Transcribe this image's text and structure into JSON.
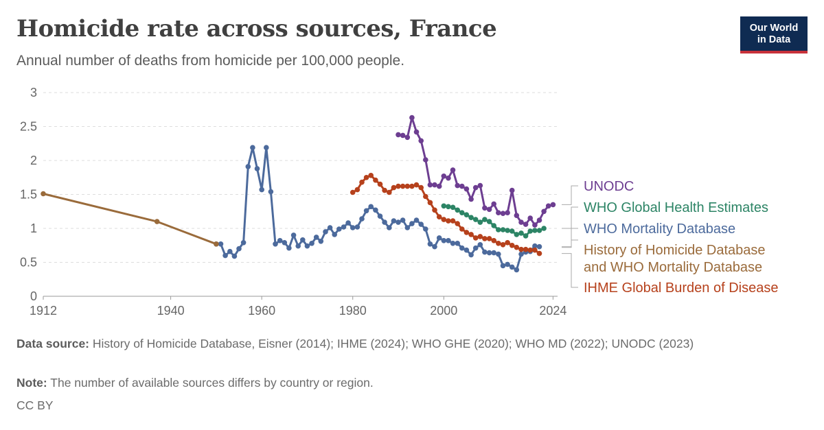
{
  "header": {
    "title": "Homicide rate across sources, France",
    "subtitle": "Annual number of deaths from homicide per 100,000 people.",
    "logo_line1": "Our World",
    "logo_line2": "in Data"
  },
  "colors": {
    "accent_navy": "#0f2b52",
    "accent_red": "#c8323b"
  },
  "chart_data": {
    "type": "line",
    "title": "Homicide rate across sources, France",
    "subtitle": "Annual number of deaths from homicide per 100,000 people.",
    "xlim": [
      1912,
      2025
    ],
    "ylim": [
      0,
      3
    ],
    "x_ticks": [
      1912,
      1940,
      1960,
      1980,
      2000,
      2024
    ],
    "y_ticks": [
      0,
      0.5,
      1,
      1.5,
      2,
      2.5,
      3
    ],
    "y_tick_labels": [
      "0",
      "0.5",
      "1",
      "1.5",
      "2",
      "2.5",
      "3"
    ],
    "grid": "horizontal dashed",
    "legend": "right, labels at line ends",
    "series": [
      {
        "name": "UNODC",
        "color": "#6d3e91",
        "points": [
          [
            1990,
            2.38
          ],
          [
            1991,
            2.37
          ],
          [
            1992,
            2.34
          ],
          [
            1993,
            2.63
          ],
          [
            1994,
            2.42
          ],
          [
            1995,
            2.29
          ],
          [
            1996,
            2.01
          ],
          [
            1997,
            1.64
          ],
          [
            1998,
            1.64
          ],
          [
            1999,
            1.62
          ],
          [
            2000,
            1.77
          ],
          [
            2001,
            1.74
          ],
          [
            2002,
            1.86
          ],
          [
            2003,
            1.63
          ],
          [
            2004,
            1.62
          ],
          [
            2005,
            1.58
          ],
          [
            2006,
            1.43
          ],
          [
            2007,
            1.6
          ],
          [
            2008,
            1.63
          ],
          [
            2009,
            1.3
          ],
          [
            2010,
            1.28
          ],
          [
            2011,
            1.36
          ],
          [
            2012,
            1.23
          ],
          [
            2013,
            1.22
          ],
          [
            2014,
            1.23
          ],
          [
            2015,
            1.56
          ],
          [
            2016,
            1.19
          ],
          [
            2017,
            1.09
          ],
          [
            2018,
            1.06
          ],
          [
            2019,
            1.15
          ],
          [
            2020,
            1.05
          ],
          [
            2021,
            1.12
          ],
          [
            2022,
            1.25
          ],
          [
            2023,
            1.33
          ],
          [
            2024,
            1.35
          ]
        ]
      },
      {
        "name": "WHO Global Health Estimates",
        "color": "#2c8465",
        "points": [
          [
            2000,
            1.33
          ],
          [
            2001,
            1.32
          ],
          [
            2002,
            1.31
          ],
          [
            2003,
            1.27
          ],
          [
            2004,
            1.23
          ],
          [
            2005,
            1.2
          ],
          [
            2006,
            1.16
          ],
          [
            2007,
            1.13
          ],
          [
            2008,
            1.09
          ],
          [
            2009,
            1.13
          ],
          [
            2010,
            1.1
          ],
          [
            2011,
            1.04
          ],
          [
            2012,
            0.98
          ],
          [
            2013,
            0.98
          ],
          [
            2014,
            0.97
          ],
          [
            2015,
            0.96
          ],
          [
            2016,
            0.91
          ],
          [
            2017,
            0.93
          ],
          [
            2018,
            0.89
          ],
          [
            2019,
            0.96
          ],
          [
            2020,
            0.97
          ],
          [
            2021,
            0.97
          ],
          [
            2022,
            1.0
          ]
        ]
      },
      {
        "name": "WHO Mortality Database",
        "color": "#4c6a9c",
        "points": [
          [
            1950,
            0.77
          ],
          [
            1951,
            0.77
          ],
          [
            1952,
            0.6
          ],
          [
            1953,
            0.66
          ],
          [
            1954,
            0.59
          ],
          [
            1955,
            0.7
          ],
          [
            1956,
            0.79
          ],
          [
            1957,
            1.91
          ],
          [
            1958,
            2.19
          ],
          [
            1959,
            1.88
          ],
          [
            1960,
            1.57
          ],
          [
            1961,
            2.19
          ],
          [
            1962,
            1.54
          ],
          [
            1963,
            0.77
          ],
          [
            1964,
            0.82
          ],
          [
            1965,
            0.79
          ],
          [
            1966,
            0.71
          ],
          [
            1967,
            0.9
          ],
          [
            1968,
            0.74
          ],
          [
            1969,
            0.83
          ],
          [
            1970,
            0.74
          ],
          [
            1971,
            0.78
          ],
          [
            1972,
            0.87
          ],
          [
            1973,
            0.81
          ],
          [
            1974,
            0.95
          ],
          [
            1975,
            1.01
          ],
          [
            1976,
            0.91
          ],
          [
            1977,
            0.99
          ],
          [
            1978,
            1.02
          ],
          [
            1979,
            1.08
          ],
          [
            1980,
            1.01
          ],
          [
            1981,
            1.02
          ],
          [
            1982,
            1.14
          ],
          [
            1983,
            1.26
          ],
          [
            1984,
            1.32
          ],
          [
            1985,
            1.27
          ],
          [
            1986,
            1.18
          ],
          [
            1987,
            1.09
          ],
          [
            1988,
            1.01
          ],
          [
            1989,
            1.11
          ],
          [
            1990,
            1.09
          ],
          [
            1991,
            1.12
          ],
          [
            1992,
            1.01
          ],
          [
            1993,
            1.07
          ],
          [
            1994,
            1.12
          ],
          [
            1995,
            1.06
          ],
          [
            1996,
            0.99
          ],
          [
            1997,
            0.77
          ],
          [
            1998,
            0.73
          ],
          [
            1999,
            0.86
          ],
          [
            2000,
            0.82
          ],
          [
            2001,
            0.82
          ],
          [
            2002,
            0.78
          ],
          [
            2003,
            0.78
          ],
          [
            2004,
            0.71
          ],
          [
            2005,
            0.68
          ],
          [
            2006,
            0.61
          ],
          [
            2007,
            0.71
          ],
          [
            2008,
            0.76
          ],
          [
            2009,
            0.65
          ],
          [
            2010,
            0.64
          ],
          [
            2011,
            0.64
          ],
          [
            2012,
            0.62
          ],
          [
            2013,
            0.45
          ],
          [
            2014,
            0.47
          ],
          [
            2015,
            0.43
          ],
          [
            2016,
            0.39
          ],
          [
            2017,
            0.62
          ],
          [
            2018,
            0.65
          ],
          [
            2019,
            0.66
          ],
          [
            2020,
            0.74
          ],
          [
            2021,
            0.73
          ]
        ]
      },
      {
        "name": "History of Homicide Database and WHO Mortality Database",
        "legend_lines": [
          "History of Homicide Database",
          "and WHO Mortality Database"
        ],
        "color": "#9a6b3b",
        "points": [
          [
            1912,
            1.51
          ],
          [
            1937,
            1.1
          ],
          [
            1950,
            0.77
          ]
        ]
      },
      {
        "name": "IHME Global Burden of Disease",
        "color": "#b6411c",
        "points": [
          [
            1980,
            1.53
          ],
          [
            1981,
            1.57
          ],
          [
            1982,
            1.68
          ],
          [
            1983,
            1.75
          ],
          [
            1984,
            1.78
          ],
          [
            1985,
            1.71
          ],
          [
            1986,
            1.65
          ],
          [
            1987,
            1.56
          ],
          [
            1988,
            1.53
          ],
          [
            1989,
            1.6
          ],
          [
            1990,
            1.62
          ],
          [
            1991,
            1.62
          ],
          [
            1992,
            1.62
          ],
          [
            1993,
            1.62
          ],
          [
            1994,
            1.64
          ],
          [
            1995,
            1.6
          ],
          [
            1996,
            1.47
          ],
          [
            1997,
            1.38
          ],
          [
            1998,
            1.27
          ],
          [
            1999,
            1.17
          ],
          [
            2000,
            1.13
          ],
          [
            2001,
            1.11
          ],
          [
            2002,
            1.11
          ],
          [
            2003,
            1.07
          ],
          [
            2004,
            0.99
          ],
          [
            2005,
            0.94
          ],
          [
            2006,
            0.91
          ],
          [
            2007,
            0.86
          ],
          [
            2008,
            0.88
          ],
          [
            2009,
            0.85
          ],
          [
            2010,
            0.85
          ],
          [
            2011,
            0.82
          ],
          [
            2012,
            0.78
          ],
          [
            2013,
            0.76
          ],
          [
            2014,
            0.79
          ],
          [
            2015,
            0.75
          ],
          [
            2016,
            0.72
          ],
          [
            2017,
            0.69
          ],
          [
            2018,
            0.69
          ],
          [
            2019,
            0.68
          ],
          [
            2020,
            0.68
          ],
          [
            2021,
            0.63
          ]
        ]
      }
    ]
  },
  "footer": {
    "source_label": "Data source:",
    "source_text": "History of Homicide Database, Eisner (2014); IHME (2024); WHO GHE (2020); WHO MD (2022); UNODC (2023)",
    "note_label": "Note:",
    "note_text": "The number of available sources differs by country or region.",
    "license": "CC BY"
  }
}
